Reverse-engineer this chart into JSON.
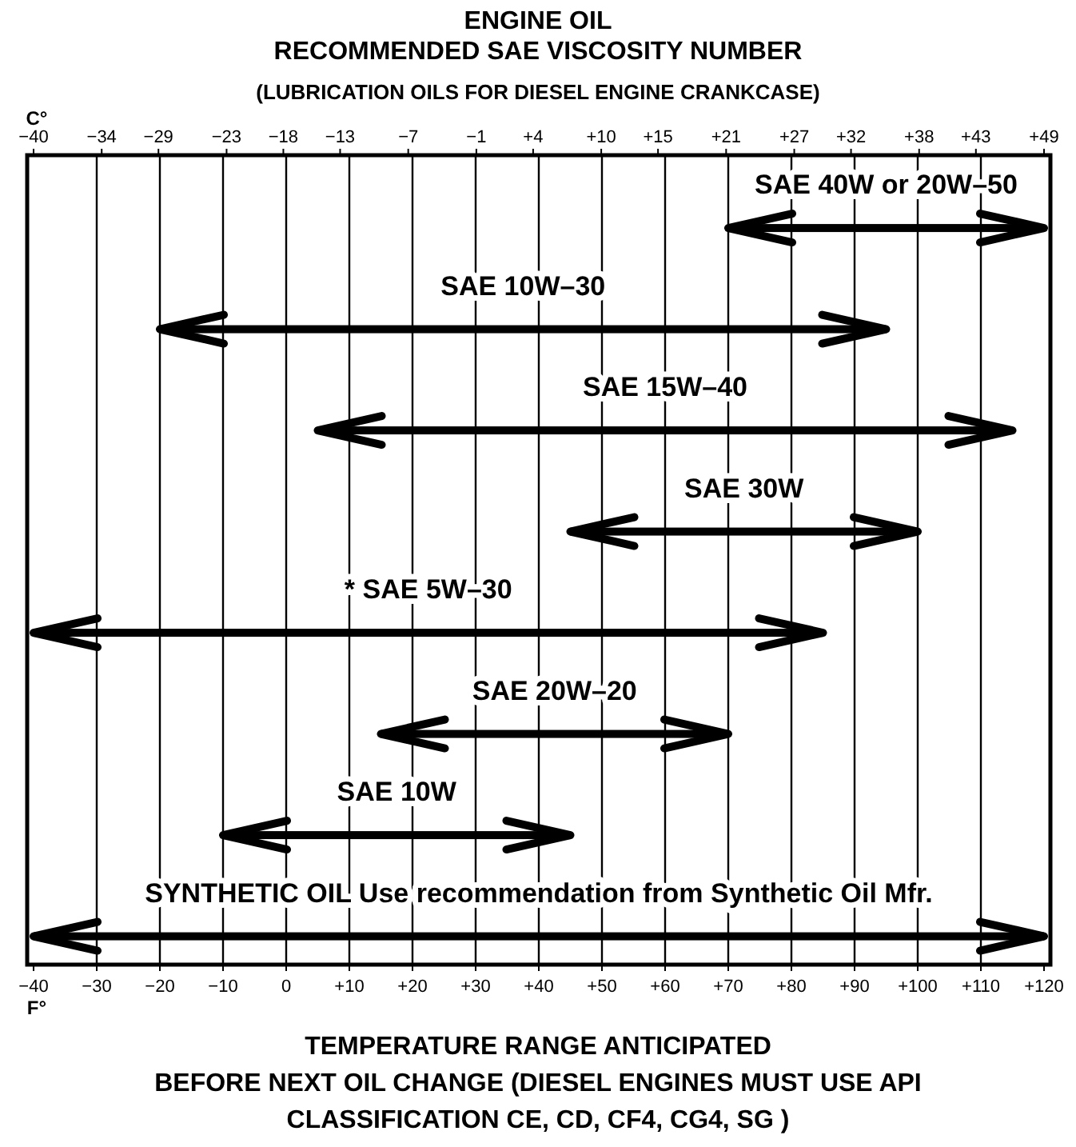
{
  "chart_data": {
    "type": "bar",
    "orientation": "horizontal",
    "title": "ENGINE OIL\nRECOMMENDED SAE VISCOSITY NUMBER",
    "subtitle": "(LUBRICATION OILS FOR DIESEL ENGINE CRANKCASE)",
    "categories": [
      "SAE 40W or 20W–50",
      "SAE 10W–30",
      "SAE 15W–40",
      "SAE 30W",
      "* SAE 5W–30",
      "SAE 20W–20",
      "SAE 10W",
      "SYNTHETIC OIL Use recommendation from Synthetic Oil Mfr."
    ],
    "base": [
      70,
      -20,
      5,
      45,
      -40,
      15,
      -10,
      -40
    ],
    "values": [
      50,
      115,
      110,
      55,
      125,
      55,
      55,
      160
    ],
    "color": "#000000",
    "xlabel": "F°",
    "x2label": "C°",
    "xlim": [
      -40,
      120
    ],
    "xticks": [
      {
        "value": -40,
        "label": "−40"
      },
      {
        "value": -30,
        "label": "−30"
      },
      {
        "value": -20,
        "label": "−20"
      },
      {
        "value": -10,
        "label": "−10"
      },
      0,
      {
        "value": 10,
        "label": "+10"
      },
      {
        "value": 20,
        "label": "+20"
      },
      {
        "value": 30,
        "label": "+30"
      },
      {
        "value": 40,
        "label": "+40"
      },
      {
        "value": 50,
        "label": "+50"
      },
      {
        "value": 60,
        "label": "+60"
      },
      {
        "value": 70,
        "label": "+70"
      },
      {
        "value": 80,
        "label": "+80"
      },
      {
        "value": 90,
        "label": "+90"
      },
      {
        "value": 100,
        "label": "+100"
      },
      {
        "value": 110,
        "label": "+110"
      },
      {
        "value": 120,
        "label": "+120"
      }
    ],
    "x2lim": [
      -40,
      49
    ],
    "x2ticks": [
      {
        "value": -40,
        "label": "−40"
      },
      {
        "value": -34,
        "label": "−34"
      },
      {
        "value": -29,
        "label": "−29"
      },
      {
        "value": -23,
        "label": "−23"
      },
      {
        "value": -18,
        "label": "−18"
      },
      {
        "value": -13,
        "label": "−13"
      },
      {
        "value": -7,
        "label": "−7"
      },
      {
        "value": -1,
        "label": "−1"
      },
      {
        "value": 4,
        "label": "+4"
      },
      {
        "value": 10,
        "label": "+10"
      },
      {
        "value": 15,
        "label": "+15"
      },
      {
        "value": 21,
        "label": "+21"
      },
      {
        "value": 27,
        "label": "+27"
      },
      {
        "value": 32,
        "label": "+32"
      },
      {
        "value": 38,
        "label": "+38"
      },
      {
        "value": 43,
        "label": "+43"
      },
      {
        "value": 49,
        "label": "+49"
      }
    ],
    "grid": "x",
    "annotations": [
      "TEMPERATURE RANGE ANTICIPATED\nBEFORE NEXT OIL CHANGE (DIESEL ENGINES MUST USE API\nCLASSIFICATION CE, CD, CF4, CG4, SG )"
    ]
  }
}
